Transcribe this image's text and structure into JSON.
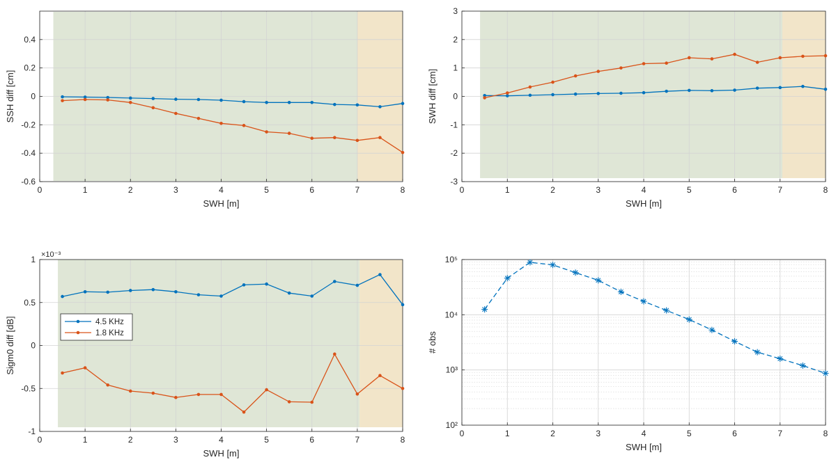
{
  "colors": {
    "series_a": "#0072BD",
    "series_b": "#D95319",
    "green_band": "#dfe6d6",
    "orange_band": "#f2e5c9",
    "grid": "#d3d3d3",
    "axis": "#262626"
  },
  "chart_data": [
    {
      "id": "ssh",
      "type": "line",
      "xlabel": "SWH [m]",
      "ylabel": "SSH diff [cm]",
      "xlim": [
        0,
        8
      ],
      "ylim": [
        -0.6,
        0.6
      ],
      "x_ticks": [
        0,
        1,
        2,
        3,
        4,
        5,
        6,
        7,
        8
      ],
      "y_ticks": [
        -0.6,
        -0.4,
        -0.2,
        0,
        0.2,
        0.4
      ],
      "y_tick_labels": [
        "-0.6",
        "-0.4",
        "-0.2",
        "0",
        "0.2",
        "0.4"
      ],
      "shaded_regions": [
        {
          "color": "green",
          "x_range": [
            0.3,
            7.0
          ]
        },
        {
          "color": "orange",
          "x_range": [
            7.0,
            8.0
          ]
        }
      ],
      "grid": true,
      "x": [
        0.5,
        1,
        1.5,
        2,
        2.5,
        3,
        3.5,
        4,
        4.5,
        5,
        5.5,
        6,
        6.5,
        7,
        7.5,
        8
      ],
      "series": [
        {
          "values": [
            -0.003,
            -0.005,
            -0.008,
            -0.012,
            -0.015,
            -0.02,
            -0.022,
            -0.027,
            -0.037,
            -0.043,
            -0.043,
            -0.043,
            -0.057,
            -0.06,
            -0.073,
            -0.05
          ]
        },
        {
          "values": [
            -0.03,
            -0.022,
            -0.025,
            -0.043,
            -0.08,
            -0.12,
            -0.155,
            -0.19,
            -0.205,
            -0.25,
            -0.26,
            -0.295,
            -0.29,
            -0.31,
            -0.29,
            -0.395
          ]
        }
      ]
    },
    {
      "id": "swh",
      "type": "line",
      "xlabel": "SWH [m]",
      "ylabel": "SWH diff [cm]",
      "xlim": [
        0,
        8
      ],
      "ylim": [
        -3,
        3
      ],
      "x_ticks": [
        0,
        1,
        2,
        3,
        4,
        5,
        6,
        7,
        8
      ],
      "y_ticks": [
        -3,
        -2,
        -1,
        0,
        1,
        2,
        3
      ],
      "y_tick_labels": [
        "-3",
        "-2",
        "-1",
        "0",
        "1",
        "2",
        "3"
      ],
      "shaded_regions": [
        {
          "color": "green",
          "x_range": [
            0.4,
            7.05
          ]
        },
        {
          "color": "orange",
          "x_range": [
            7.05,
            8.0
          ]
        }
      ],
      "grid": true,
      "x": [
        0.5,
        1,
        1.5,
        2,
        2.5,
        3,
        3.5,
        4,
        4.5,
        5,
        5.5,
        6,
        6.5,
        7,
        7.5,
        8
      ],
      "series": [
        {
          "values": [
            0.03,
            0.02,
            0.04,
            0.06,
            0.08,
            0.1,
            0.11,
            0.13,
            0.18,
            0.21,
            0.2,
            0.22,
            0.29,
            0.31,
            0.35,
            0.25
          ]
        },
        {
          "values": [
            -0.05,
            0.12,
            0.33,
            0.5,
            0.72,
            0.88,
            1.0,
            1.15,
            1.17,
            1.36,
            1.32,
            1.48,
            1.2,
            1.36,
            1.41,
            1.43
          ]
        }
      ]
    },
    {
      "id": "sigma0",
      "type": "line",
      "xlabel": "SWH [m]",
      "ylabel": "Sigm0 diff [dB]",
      "exponent_label": "×10⁻³",
      "xlim": [
        0,
        8
      ],
      "ylim": [
        -1,
        1
      ],
      "x_ticks": [
        0,
        1,
        2,
        3,
        4,
        5,
        6,
        7,
        8
      ],
      "y_ticks": [
        -1,
        -0.5,
        0,
        0.5,
        1
      ],
      "y_tick_labels": [
        "-1",
        "-0.5",
        "0",
        "0.5",
        "1"
      ],
      "shaded_regions": [
        {
          "color": "green",
          "x_range": [
            0.4,
            7.05
          ]
        },
        {
          "color": "orange",
          "x_range": [
            7.05,
            8.0
          ]
        }
      ],
      "grid": true,
      "legend": {
        "placement": "middle-left",
        "entries": [
          "4.5 KHz",
          "1.8 KHz"
        ]
      },
      "x": [
        0.5,
        1,
        1.5,
        2,
        2.5,
        3,
        3.5,
        4,
        4.5,
        5,
        5.5,
        6,
        6.5,
        7,
        7.5,
        8
      ],
      "series": [
        {
          "name": "4.5 KHz",
          "values": [
            0.57,
            0.625,
            0.62,
            0.64,
            0.65,
            0.625,
            0.59,
            0.575,
            0.705,
            0.715,
            0.61,
            0.575,
            0.745,
            0.7,
            0.825,
            0.475
          ]
        },
        {
          "name": "1.8 KHz",
          "values": [
            -0.32,
            -0.26,
            -0.46,
            -0.53,
            -0.555,
            -0.605,
            -0.57,
            -0.57,
            -0.775,
            -0.515,
            -0.655,
            -0.66,
            -0.1,
            -0.565,
            -0.35,
            -0.5
          ]
        }
      ]
    },
    {
      "id": "obs",
      "type": "line",
      "scale_y": "log",
      "xlabel": "SWH [m]",
      "ylabel": "# obs",
      "xlim": [
        0,
        8
      ],
      "ylim": [
        100,
        100000
      ],
      "x_ticks": [
        0,
        1,
        2,
        3,
        4,
        5,
        6,
        7,
        8
      ],
      "y_ticks": [
        100,
        1000,
        10000,
        100000
      ],
      "y_tick_labels": [
        "10²",
        "10³",
        "10⁴",
        "10⁵"
      ],
      "grid": true,
      "minor_grid": true,
      "marker": "asterisk",
      "line_style": "dashed",
      "x": [
        0.5,
        1,
        1.5,
        2,
        2.5,
        3,
        3.5,
        4,
        4.5,
        5,
        5.5,
        6,
        6.5,
        7,
        7.5,
        8
      ],
      "series": [
        {
          "values": [
            12500,
            46000,
            89000,
            80000,
            58000,
            42000,
            26000,
            17500,
            12000,
            8200,
            5300,
            3300,
            2100,
            1600,
            1200,
            870
          ]
        }
      ]
    }
  ]
}
